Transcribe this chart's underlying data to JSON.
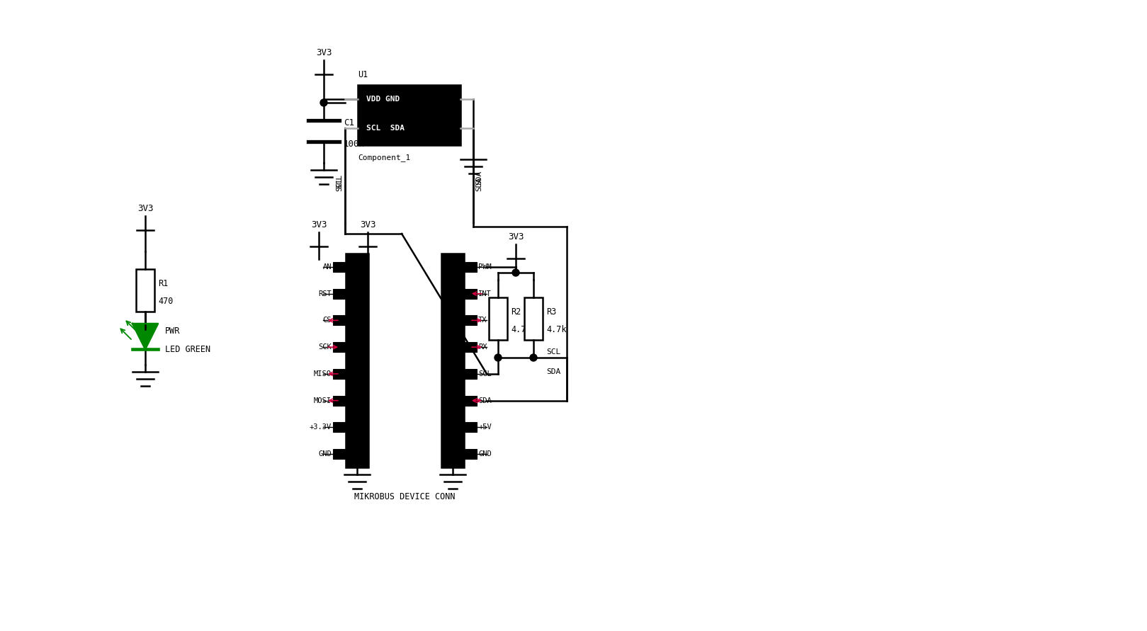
{
  "bg_color": "#ffffff",
  "line_color": "#000000",
  "red_color": "#dd0044",
  "green_color": "#008800",
  "mikrobus_left_pins": [
    "AN",
    "RST",
    "CS",
    "SCK",
    "MISO",
    "MOSI",
    "+3.3V",
    "GND"
  ],
  "mikrobus_right_pins": [
    "PWM",
    "INT",
    "TX",
    "RX",
    "SCL",
    "SDA",
    "+5V",
    "GND"
  ],
  "mikrobus_label": "MIKROBUS DEVICE CONN",
  "left_arrow_pins": [
    "CS",
    "MISO"
  ],
  "right_arrow_pins_right": [
    "TX",
    "RX"
  ],
  "right_arrow_pins_left": [
    "INT"
  ],
  "right_arrow_pins_both": [
    "SDA"
  ],
  "u1_pin_labels_top": "VDD GND",
  "u1_pin_labels_bot": "SCL  SDA",
  "u1_label": "U1",
  "u1_component": "Component_1",
  "cap_label": "C1",
  "cap_value": "100n",
  "r1_label": "R1",
  "r1_value": "470",
  "r2_label": "R2",
  "r2_value": "4.7k",
  "r3_label": "R3",
  "r3_value": "4.7k",
  "pwr_label": "3V3",
  "led_label": "PWR",
  "led_sublabel": "LED GREEN",
  "scl_wire_label": "SCL",
  "sda_wire_label": "SDA"
}
